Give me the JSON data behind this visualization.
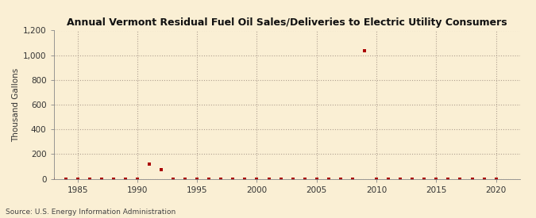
{
  "title": "Annual Vermont Residual Fuel Oil Sales/Deliveries to Electric Utility Consumers",
  "ylabel": "Thousand Gallons",
  "source": "Source: U.S. Energy Information Administration",
  "background_color": "#faefd4",
  "plot_bg_color": "#faefd4",
  "xlim": [
    1983,
    2022
  ],
  "ylim": [
    0,
    1200
  ],
  "yticks": [
    0,
    200,
    400,
    600,
    800,
    1000,
    1200
  ],
  "xticks": [
    1985,
    1990,
    1995,
    2000,
    2005,
    2010,
    2015,
    2020
  ],
  "marker_color": "#aa0000",
  "marker_size": 3.5,
  "years": [
    1983,
    1984,
    1985,
    1986,
    1987,
    1988,
    1989,
    1990,
    1991,
    1992,
    1993,
    1994,
    1995,
    1996,
    1997,
    1998,
    1999,
    2000,
    2001,
    2002,
    2003,
    2004,
    2005,
    2006,
    2007,
    2008,
    2009,
    2010,
    2011,
    2012,
    2013,
    2014,
    2015,
    2016,
    2017,
    2018,
    2019,
    2020
  ],
  "values": [
    0,
    0,
    0,
    0,
    0,
    0,
    0,
    0,
    120,
    75,
    0,
    0,
    0,
    0,
    0,
    0,
    0,
    0,
    0,
    0,
    0,
    0,
    0,
    0,
    0,
    0,
    1035,
    0,
    0,
    0,
    0,
    0,
    0,
    0,
    0,
    0,
    0,
    0
  ]
}
